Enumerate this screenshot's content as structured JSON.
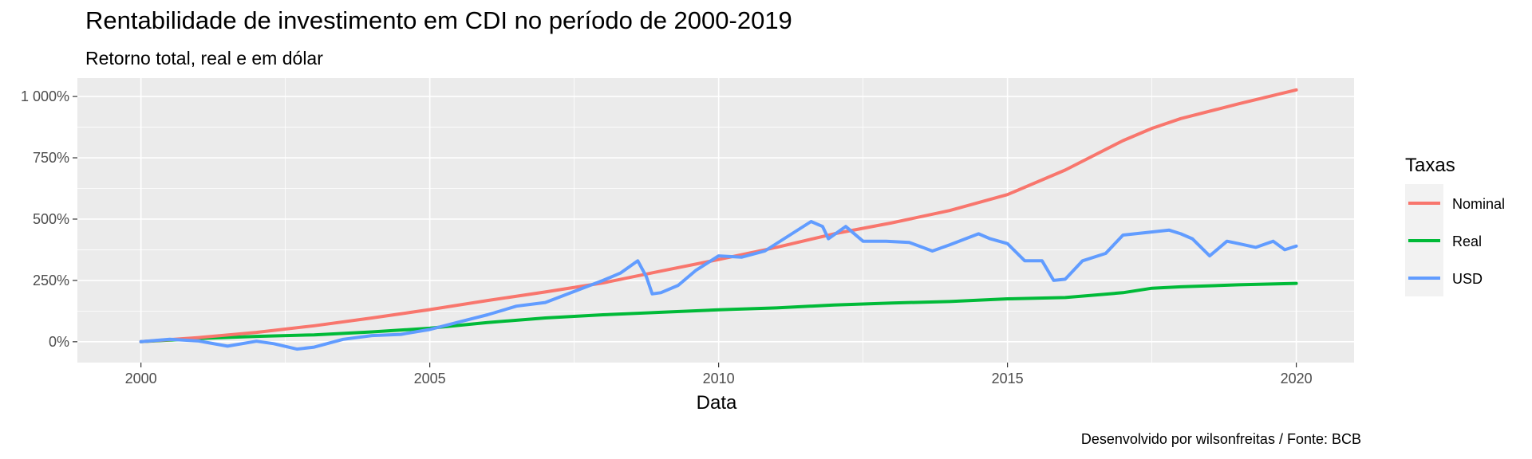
{
  "title": "Rentabilidade de investimento em CDI no período de 2000-2019",
  "subtitle": "Retorno total, real e em dólar",
  "caption": "Desenvolvido por wilsonfreitas / Fonte: BCB",
  "chart_data": {
    "type": "line",
    "title": "Rentabilidade de investimento em CDI no período de 2000-2019",
    "subtitle": "Retorno total, real e em dólar",
    "xlabel": "Data",
    "ylabel": "",
    "xlim": [
      1998.9,
      2021.0
    ],
    "ylim": [
      -85,
      1075
    ],
    "x_ticks": [
      2000,
      2005,
      2010,
      2015,
      2020
    ],
    "x_tick_labels": [
      "2000",
      "2005",
      "2010",
      "2015",
      "2020"
    ],
    "y_ticks": [
      0,
      250,
      500,
      750,
      1000
    ],
    "y_tick_labels": [
      "0%",
      "250%",
      "500%",
      "750%",
      "1 000%"
    ],
    "grid": true,
    "legend": {
      "title": "Taxas",
      "position": "right"
    },
    "series": [
      {
        "name": "Nominal",
        "color": "#F8766D",
        "points": [
          [
            2000,
            0
          ],
          [
            2001,
            17
          ],
          [
            2002,
            38
          ],
          [
            2003,
            65
          ],
          [
            2004,
            97
          ],
          [
            2005,
            131
          ],
          [
            2006,
            168
          ],
          [
            2007,
            203
          ],
          [
            2008,
            240
          ],
          [
            2009,
            288
          ],
          [
            2010,
            335
          ],
          [
            2011,
            385
          ],
          [
            2012,
            440
          ],
          [
            2013,
            485
          ],
          [
            2014,
            535
          ],
          [
            2015,
            600
          ],
          [
            2016,
            700
          ],
          [
            2017,
            820
          ],
          [
            2017.5,
            870
          ],
          [
            2018,
            910
          ],
          [
            2019,
            970
          ],
          [
            2020,
            1027
          ]
        ]
      },
      {
        "name": "Real",
        "color": "#00BA38",
        "points": [
          [
            2000,
            0
          ],
          [
            2001,
            13
          ],
          [
            2002,
            22
          ],
          [
            2003,
            28
          ],
          [
            2004,
            40
          ],
          [
            2005,
            55
          ],
          [
            2006,
            78
          ],
          [
            2007,
            97
          ],
          [
            2008,
            110
          ],
          [
            2009,
            120
          ],
          [
            2010,
            130
          ],
          [
            2011,
            138
          ],
          [
            2012,
            150
          ],
          [
            2013,
            158
          ],
          [
            2014,
            164
          ],
          [
            2015,
            175
          ],
          [
            2016,
            180
          ],
          [
            2017,
            200
          ],
          [
            2017.5,
            218
          ],
          [
            2018,
            224
          ],
          [
            2019,
            232
          ],
          [
            2020,
            238
          ]
        ]
      },
      {
        "name": "USD",
        "color": "#619CFF",
        "points": [
          [
            2000,
            0
          ],
          [
            2000.5,
            10
          ],
          [
            2001,
            3
          ],
          [
            2001.5,
            -18
          ],
          [
            2002,
            2
          ],
          [
            2002.3,
            -8
          ],
          [
            2002.7,
            -30
          ],
          [
            2003,
            -22
          ],
          [
            2003.5,
            10
          ],
          [
            2004,
            25
          ],
          [
            2004.5,
            30
          ],
          [
            2005,
            50
          ],
          [
            2005.5,
            80
          ],
          [
            2006,
            110
          ],
          [
            2006.5,
            145
          ],
          [
            2007,
            160
          ],
          [
            2007.5,
            205
          ],
          [
            2008,
            250
          ],
          [
            2008.3,
            280
          ],
          [
            2008.6,
            330
          ],
          [
            2008.75,
            265
          ],
          [
            2008.85,
            195
          ],
          [
            2009,
            200
          ],
          [
            2009.3,
            230
          ],
          [
            2009.6,
            290
          ],
          [
            2010,
            350
          ],
          [
            2010.4,
            345
          ],
          [
            2010.8,
            370
          ],
          [
            2011.2,
            430
          ],
          [
            2011.6,
            490
          ],
          [
            2011.8,
            470
          ],
          [
            2011.9,
            420
          ],
          [
            2012.2,
            470
          ],
          [
            2012.5,
            410
          ],
          [
            2012.9,
            410
          ],
          [
            2013.3,
            405
          ],
          [
            2013.7,
            370
          ],
          [
            2014,
            395
          ],
          [
            2014.5,
            440
          ],
          [
            2014.7,
            420
          ],
          [
            2015,
            400
          ],
          [
            2015.3,
            330
          ],
          [
            2015.6,
            330
          ],
          [
            2015.8,
            250
          ],
          [
            2016,
            255
          ],
          [
            2016.3,
            330
          ],
          [
            2016.7,
            360
          ],
          [
            2017,
            435
          ],
          [
            2017.4,
            445
          ],
          [
            2017.8,
            455
          ],
          [
            2018,
            440
          ],
          [
            2018.2,
            420
          ],
          [
            2018.5,
            350
          ],
          [
            2018.8,
            410
          ],
          [
            2019,
            400
          ],
          [
            2019.3,
            385
          ],
          [
            2019.6,
            410
          ],
          [
            2019.8,
            375
          ],
          [
            2020,
            390
          ]
        ]
      }
    ]
  }
}
